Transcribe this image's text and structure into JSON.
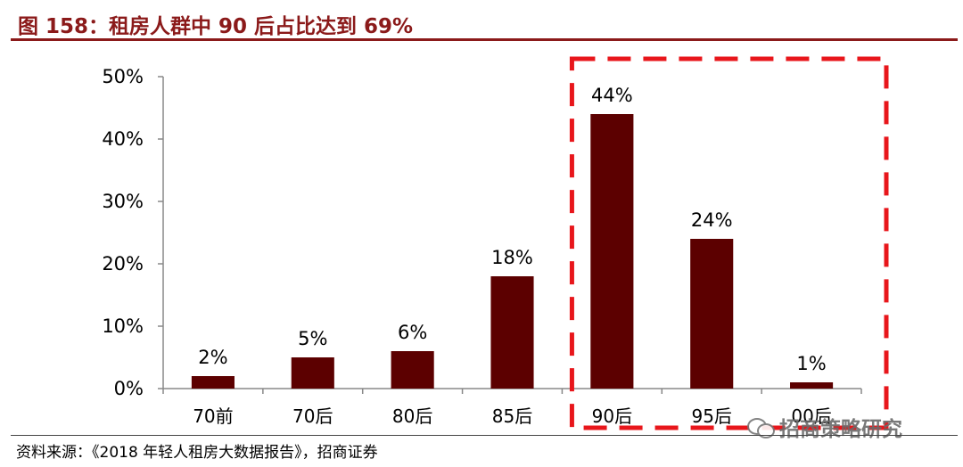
{
  "title": "图 158：租房人群中 90 后占比达到 69%",
  "source": "资料来源：《2018 年轻人租房大数据报告》，招商证券",
  "watermark": {
    "text": "招商策略研究",
    "icon": "wechat-icon"
  },
  "colors": {
    "bar": "#5c0000",
    "title": "#8b1a1a",
    "highlight_box": "#e8161b"
  },
  "chart_data": {
    "type": "bar",
    "title": "",
    "xlabel": "",
    "ylabel": "",
    "categories": [
      "70前",
      "70后",
      "80后",
      "85后",
      "90后",
      "95后",
      "00后"
    ],
    "values": [
      2,
      5,
      6,
      18,
      44,
      24,
      1
    ],
    "data_labels": [
      "2%",
      "5%",
      "6%",
      "18%",
      "44%",
      "24%",
      "1%"
    ],
    "ylim": [
      0,
      50
    ],
    "yticks": [
      0,
      10,
      20,
      30,
      40,
      50
    ],
    "ytick_labels": [
      "0%",
      "10%",
      "20%",
      "30%",
      "40%",
      "50%"
    ],
    "grid": false,
    "legend": "none",
    "highlighted_categories": [
      "90后",
      "95后",
      "00后"
    ]
  }
}
